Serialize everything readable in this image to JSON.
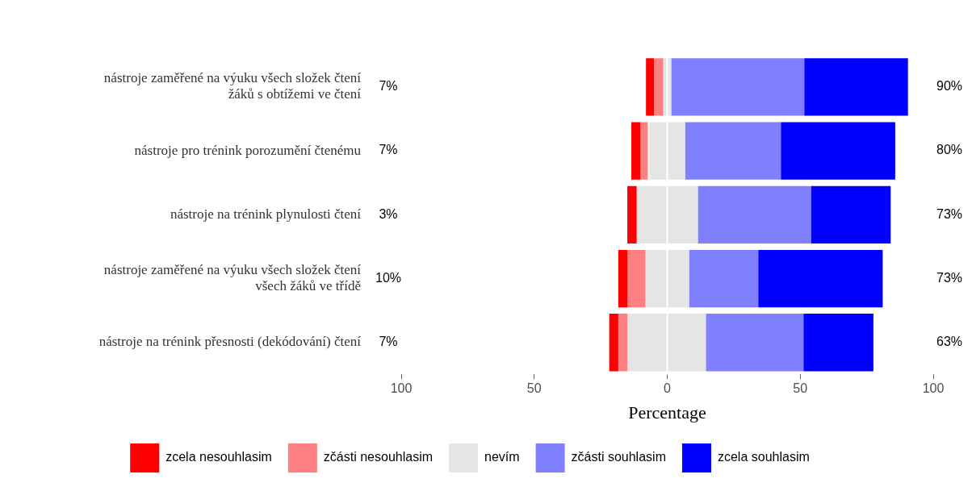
{
  "chart_data": {
    "type": "bar",
    "orientation": "horizontal",
    "xlabel": "Percentage",
    "categories": [
      "nástroje zaměřené na výuku všech složek čtení\nžáků s obtížemi ve čtení",
      "nástroje pro trénink porozumění čtenému",
      "nástroje na trénink plynulosti čtení",
      "nástroje zaměřené na výuku všech složek čtení\nvšech žáků ve třídě",
      "nástroje na trénink přesnosti (dekódování) čtení"
    ],
    "series": [
      {
        "name": "zcela nesouhlasim",
        "color": "#ff0000",
        "base": [
          -8,
          -13.5,
          -15,
          -18.4,
          -21.8
        ],
        "values": [
          3,
          3.4,
          3.5,
          3.4,
          3.4
        ]
      },
      {
        "name": "zčásti nesouhlasim",
        "color": "#ff8080",
        "base": [
          -5,
          -10.1,
          null,
          -15,
          -18.4
        ],
        "values": [
          3.5,
          2.8,
          null,
          6.8,
          3.4
        ]
      },
      {
        "name": "nevím",
        "color": "#e5e5e5",
        "base": [
          -1.5,
          -6.7,
          -11.5,
          -8.2,
          -15
        ],
        "values": [
          3,
          13.4,
          23,
          16.4,
          29.5
        ]
      },
      {
        "name": "zčásti souhlasim",
        "color": "#8080ff",
        "base": [
          1.5,
          6.7,
          11.5,
          8.2,
          14.5
        ],
        "values": [
          50,
          36,
          42.5,
          26,
          36.7
        ]
      },
      {
        "name": "zcela souhlasim",
        "color": "#0000ff",
        "base": [
          51.5,
          42.7,
          54,
          34.2,
          51.2
        ],
        "values": [
          39,
          43,
          30,
          46.8,
          26.3
        ]
      }
    ],
    "xlim": [
      -100,
      100
    ],
    "xticks": [
      {
        "value": -100,
        "label": "100"
      },
      {
        "value": -50,
        "label": "50"
      },
      0,
      50,
      100
    ],
    "ref_lines": [
      {
        "axis": "x",
        "value": 0,
        "color": "#ffffff"
      }
    ],
    "annotations": [
      "7%",
      "90%",
      "7%",
      "80%",
      "3%",
      "73%",
      "10%",
      "73%",
      "7%",
      "63%"
    ],
    "grid": false,
    "legend": "bottom"
  }
}
